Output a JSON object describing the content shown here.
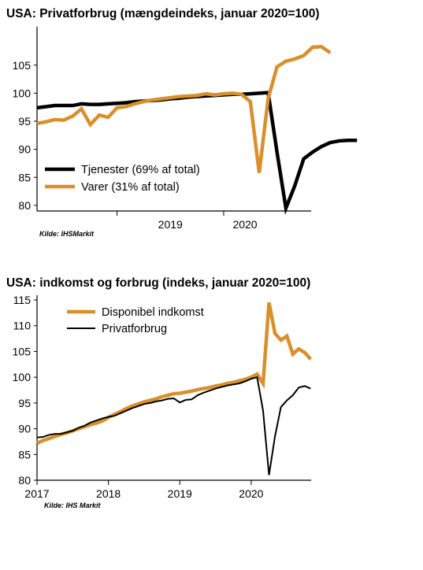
{
  "chart_data": [
    {
      "type": "line",
      "title": "USA: Privatforbrug (mængdeindeks, januar 2020=100)",
      "source": "Kilde: IHSMarkit",
      "ylim": [
        79,
        111
      ],
      "yticks": [
        80,
        85,
        90,
        95,
        100,
        105
      ],
      "xlim": [
        2018.25,
        2020.82
      ],
      "xticks": [
        {
          "value": 2019,
          "label": "2019"
        },
        {
          "value": 2020,
          "label": "2020"
        }
      ],
      "x_label_positions": [
        2019.5,
        2020.2
      ],
      "grid": false,
      "legend_position": "bottom-left",
      "x_start": 2018.25,
      "x_step": 0.08333,
      "series": [
        {
          "name": "Tjenester (69% af total)",
          "color": "#000000",
          "values": [
            97.4,
            97.6,
            97.8,
            97.8,
            97.8,
            98.1,
            98.0,
            98.0,
            98.1,
            98.2,
            98.3,
            98.5,
            98.6,
            98.7,
            98.8,
            99.0,
            99.1,
            99.3,
            99.4,
            99.5,
            99.6,
            99.7,
            99.8,
            99.8,
            99.9,
            100.0,
            100.1,
            89.5,
            79.5,
            83.5,
            88.3,
            89.5,
            90.5,
            91.2,
            91.5,
            91.6,
            91.6
          ]
        },
        {
          "name": "Varer (31% af total)",
          "color": "#D8902C",
          "values": [
            94.6,
            94.9,
            95.3,
            95.2,
            95.9,
            97.2,
            94.4,
            96.1,
            95.7,
            97.4,
            97.6,
            98.1,
            98.5,
            98.8,
            99.0,
            99.2,
            99.4,
            99.5,
            99.6,
            99.9,
            99.7,
            99.9,
            100.0,
            99.8,
            98.5,
            85.8,
            99.0,
            104.7,
            105.7,
            106.1,
            106.7,
            108.2,
            108.3,
            107.2
          ]
        }
      ]
    },
    {
      "type": "line",
      "title": "USA: indkomst og forbrug (indeks, januar 2020=100)",
      "source": "Kilde: IHS Markit",
      "ylim": [
        80,
        115
      ],
      "yticks": [
        80,
        85,
        90,
        95,
        100,
        105,
        110,
        115
      ],
      "xlim": [
        2017.0,
        2020.84
      ],
      "xticks": [
        {
          "value": 2017,
          "label": "2017"
        },
        {
          "value": 2018,
          "label": "2018"
        },
        {
          "value": 2019,
          "label": "2019"
        },
        {
          "value": 2020,
          "label": "2020"
        }
      ],
      "grid": false,
      "legend_position": "top-right",
      "x_start": 2017.0,
      "x_step": 0.08333,
      "series": [
        {
          "name": "Disponibel indkomst",
          "color": "#D8902C",
          "values": [
            87.2,
            87.7,
            88.1,
            88.5,
            88.9,
            89.2,
            89.6,
            90.0,
            90.4,
            90.8,
            91.1,
            91.5,
            92.2,
            92.8,
            93.3,
            93.9,
            94.4,
            94.8,
            95.2,
            95.5,
            95.8,
            96.2,
            96.5,
            96.8,
            96.9,
            97.1,
            97.3,
            97.6,
            97.8,
            98.0,
            98.3,
            98.5,
            98.8,
            99.0,
            99.3,
            99.6,
            100.0,
            100.6,
            98.8,
            114.5,
            108.5,
            107.2,
            108.0,
            104.5,
            105.5,
            104.8,
            103.5
          ]
        },
        {
          "name": "Privatforbrug",
          "color": "#000000",
          "values": [
            88.3,
            88.4,
            88.8,
            89.0,
            89.0,
            89.3,
            89.6,
            90.2,
            90.6,
            91.2,
            91.6,
            92.0,
            92.3,
            92.5,
            93.0,
            93.5,
            94.0,
            94.4,
            94.8,
            95.0,
            95.3,
            95.5,
            95.8,
            95.9,
            95.1,
            95.6,
            95.7,
            96.5,
            97.0,
            97.4,
            97.8,
            98.1,
            98.4,
            98.6,
            98.8,
            99.2,
            99.7,
            100.0,
            93.5,
            81.0,
            88.5,
            94.2,
            95.5,
            96.5,
            98.0,
            98.3,
            97.8
          ]
        }
      ]
    }
  ]
}
